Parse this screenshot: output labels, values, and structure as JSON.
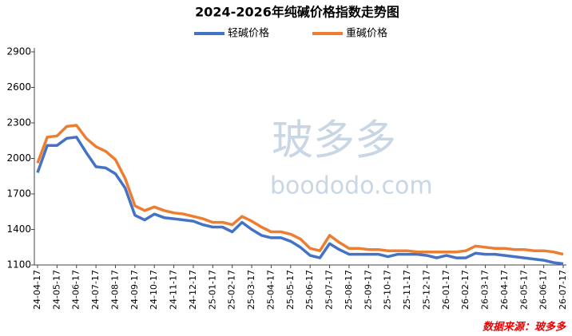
{
  "chart_data": {
    "type": "line",
    "title": "2024-2026年纯碱价格指数走势图",
    "source": "数据来源：玻多多",
    "watermark": [
      "玻多多",
      "boododo.com"
    ],
    "categories": [
      "24-04-17",
      null,
      "24-05-17",
      null,
      "24-06-17",
      null,
      "24-07-17",
      null,
      "24-08-17",
      null,
      "24-09-17",
      null,
      "24-10-17",
      null,
      "24-11-17",
      null,
      "24-12-17",
      null,
      "25-01-17",
      null,
      "25-02-17",
      null,
      "25-03-17",
      null,
      "25-04-17",
      null,
      "25-05-17",
      null,
      "25-06-17",
      null,
      "25-07-17",
      null,
      "25-08-17",
      null,
      "25-09-17",
      null,
      "25-10-17",
      null,
      "25-11-17",
      null,
      "25-12-17",
      null,
      "26-01-17",
      null,
      "26-02-17",
      null,
      "26-03-17",
      null,
      "26-04-17",
      null,
      "26-05-17",
      null,
      "26-06-17",
      null,
      "26-07-17"
    ],
    "series": [
      {
        "name": "轻碱价格",
        "color": "#4472c4",
        "values": [
          1880,
          2110,
          2110,
          2170,
          2180,
          2050,
          1930,
          1920,
          1870,
          1750,
          1520,
          1480,
          1530,
          1500,
          1490,
          1480,
          1470,
          1440,
          1420,
          1420,
          1380,
          1460,
          1400,
          1350,
          1330,
          1330,
          1300,
          1250,
          1180,
          1160,
          1280,
          1230,
          1190,
          1190,
          1190,
          1190,
          1170,
          1190,
          1190,
          1190,
          1180,
          1160,
          1180,
          1160,
          1160,
          1200,
          1190,
          1190,
          1180,
          1170,
          1160,
          1150,
          1140,
          1120,
          1110
        ]
      },
      {
        "name": "重碱价格",
        "color": "#ed7d31",
        "values": [
          1960,
          2180,
          2190,
          2270,
          2280,
          2170,
          2100,
          2060,
          1990,
          1830,
          1600,
          1560,
          1590,
          1560,
          1540,
          1530,
          1510,
          1490,
          1460,
          1460,
          1440,
          1510,
          1470,
          1420,
          1380,
          1380,
          1360,
          1320,
          1240,
          1220,
          1350,
          1290,
          1240,
          1240,
          1230,
          1230,
          1220,
          1220,
          1220,
          1210,
          1210,
          1210,
          1210,
          1210,
          1220,
          1260,
          1250,
          1240,
          1240,
          1230,
          1230,
          1220,
          1220,
          1210,
          1190
        ]
      }
    ],
    "ylim": [
      1100,
      2900
    ],
    "yticks": [
      1100,
      1400,
      1700,
      2000,
      2300,
      2600,
      2900
    ],
    "grid": false
  }
}
